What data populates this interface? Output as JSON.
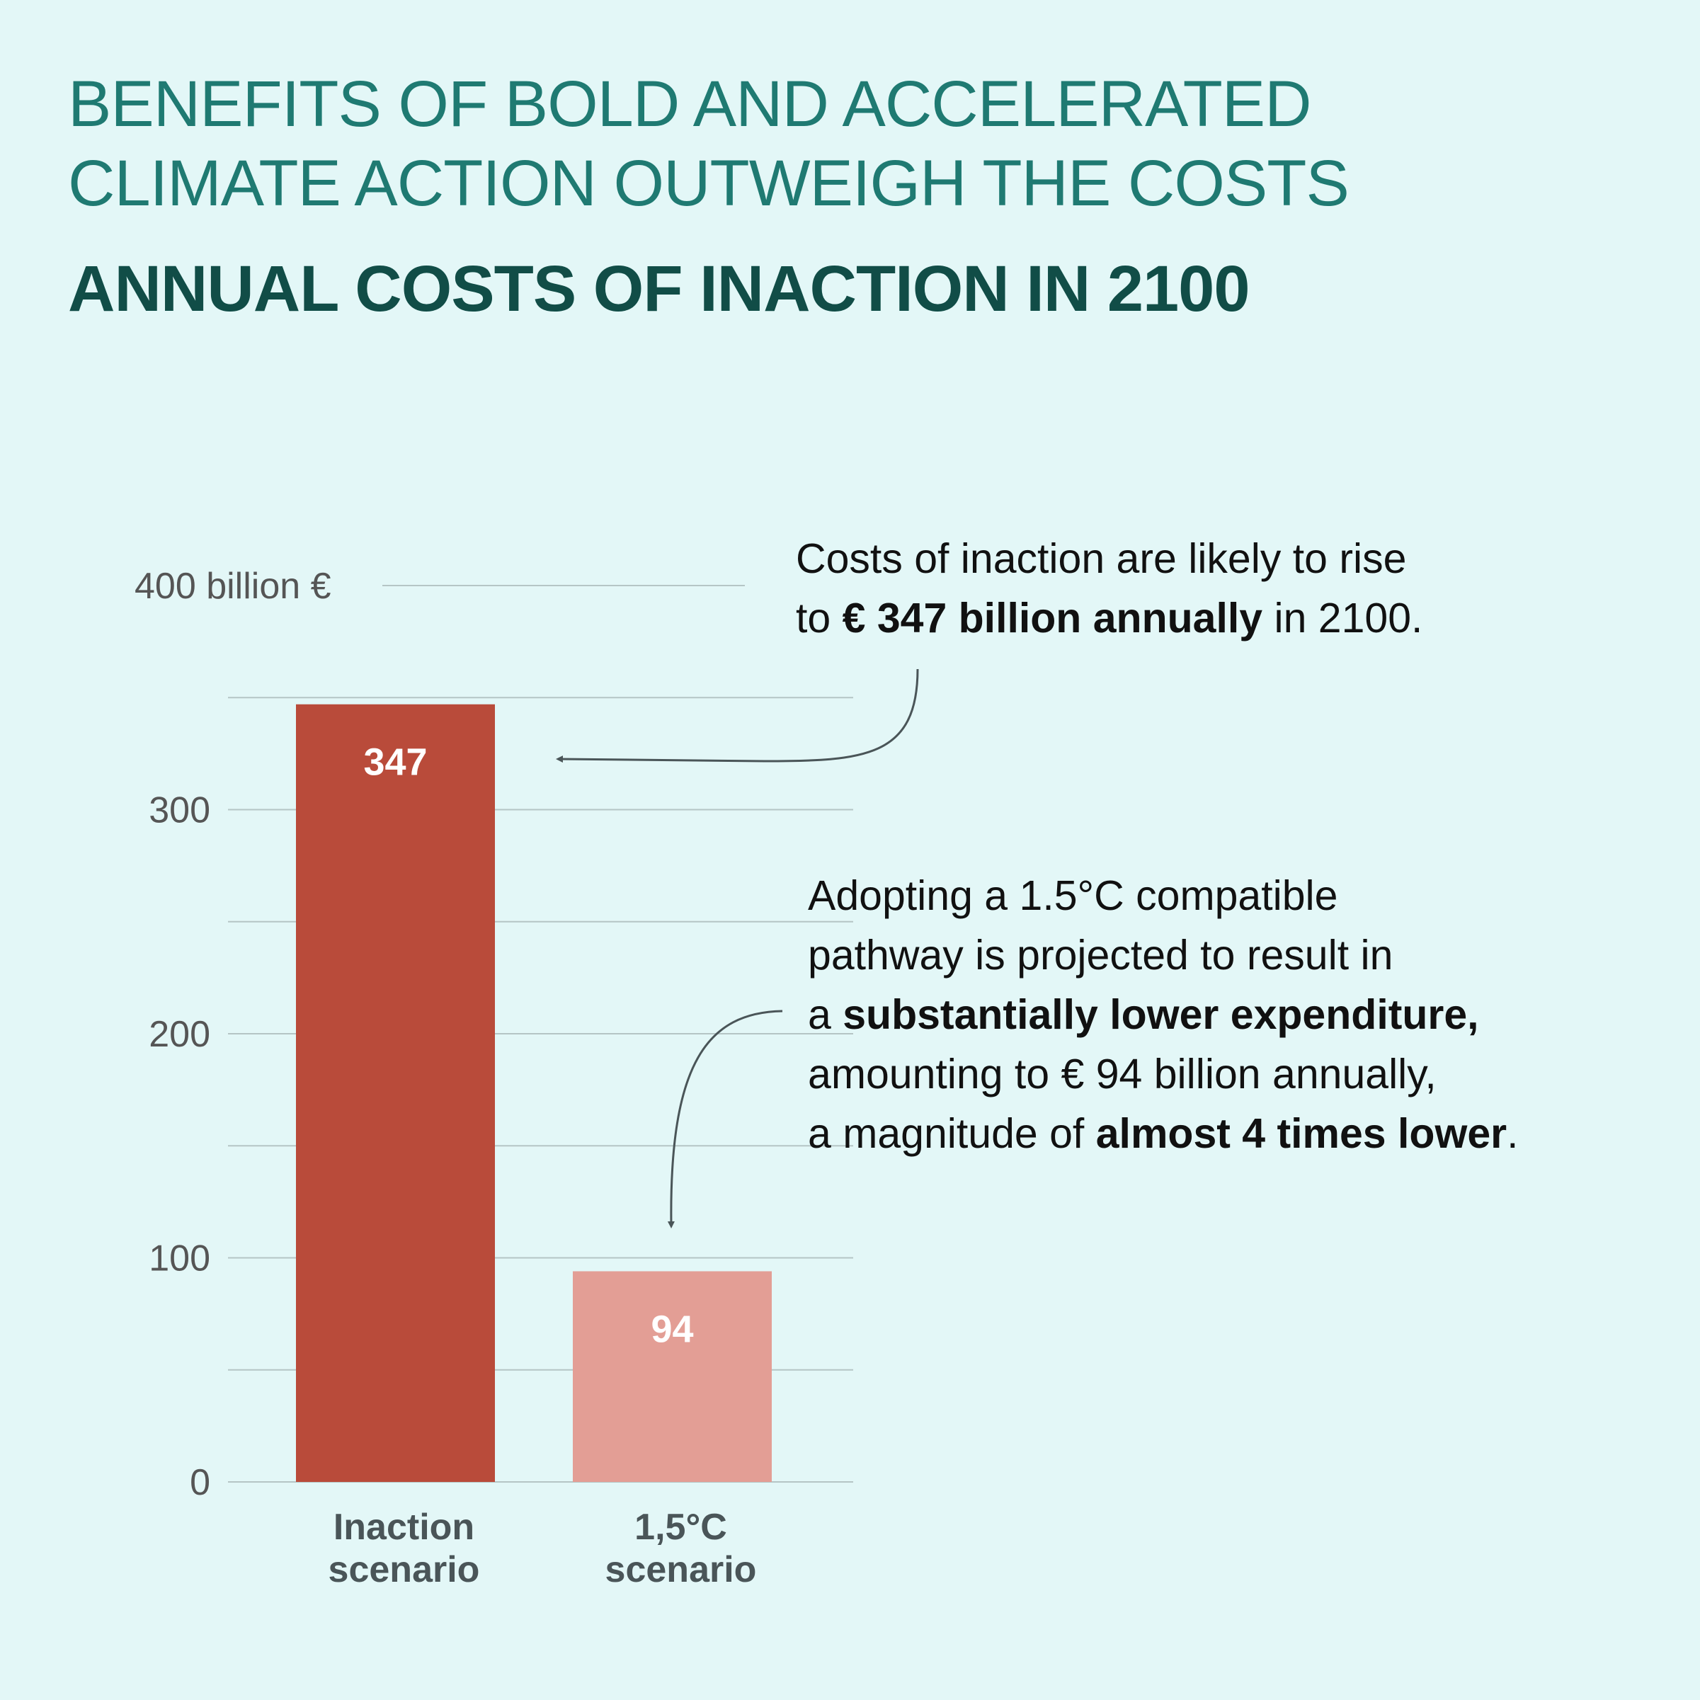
{
  "header": {
    "title_line1": "BENEFITS OF BOLD AND ACCELERATED",
    "title_line2": "CLIMATE ACTION OUTWEIGH THE COSTS",
    "subtitle": "ANNUAL COSTS OF INACTION IN 2100"
  },
  "chart_data": {
    "type": "bar",
    "categories": [
      [
        "Inaction",
        "scenario"
      ],
      [
        "1,5°C",
        "scenario"
      ]
    ],
    "values": [
      347,
      94
    ],
    "value_labels": [
      "347",
      "94"
    ],
    "colors": [
      "#b94b3a",
      "#e39e95"
    ],
    "y_ticks": [
      0,
      100,
      200,
      300,
      400
    ],
    "y_tick_labels": [
      "0",
      "100",
      "200",
      "300",
      "400 billion €"
    ],
    "ylim": [
      0,
      400
    ],
    "minor_grid": [
      50,
      150,
      250,
      350
    ],
    "grid": true,
    "legend": "none"
  },
  "callouts": {
    "inaction": {
      "line1": "Costs of inaction are likely to rise",
      "line2_pre": "to ",
      "line2_bold": "€ 347 billion annually",
      "line2_post": " in 2100."
    },
    "pathway": {
      "line1": "Adopting a 1.5°C compatible",
      "line2": "pathway is projected to result in",
      "line3_pre": "a ",
      "line3_bold": "substantially lower expenditure,",
      "line4": "amounting to € 94 billion annually,",
      "line5_pre": "a magnitude of ",
      "line5_bold": "almost 4 times lower",
      "line5_post": "."
    }
  },
  "colors": {
    "background": "#e3f7f7",
    "title": "#1f7a72",
    "subtitle": "#114d47",
    "axis_text": "#555555",
    "category_text": "#4a5558",
    "grid": "#b5c5c5",
    "arrow": "#4a5558"
  }
}
